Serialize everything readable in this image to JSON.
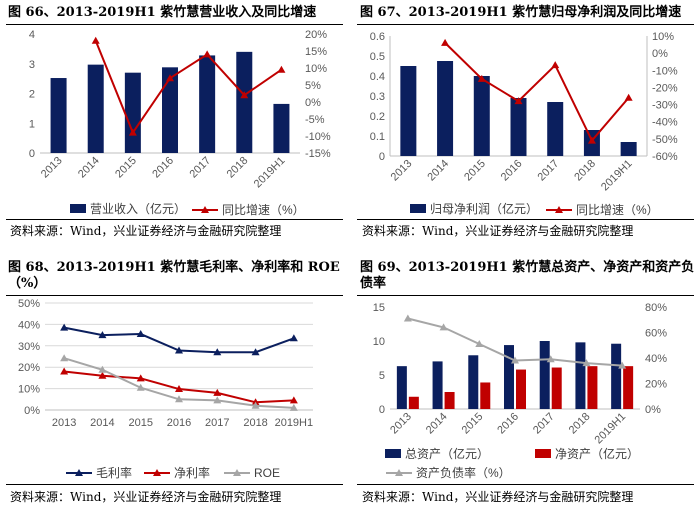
{
  "source_text": "资料来源：Wind，兴业证券经济与金融研究院整理",
  "chart_data": [
    {
      "id": "fig66",
      "type": "bar+line",
      "title": "图 66、2013-2019H1 紫竹慧营业收入及同比增速",
      "categories": [
        "2013",
        "2014",
        "2015",
        "2016",
        "2017",
        "2018",
        "2019H1"
      ],
      "series": [
        {
          "name": "营业收入（亿元）",
          "kind": "bar",
          "axis": "left",
          "color": "#0b1f5e",
          "values": [
            2.52,
            2.97,
            2.7,
            2.88,
            3.28,
            3.4,
            1.65
          ]
        },
        {
          "name": "同比增速（%）",
          "kind": "line",
          "axis": "right",
          "color": "#c00000",
          "marker": "triangle",
          "values": [
            null,
            18.0,
            -9.0,
            7.0,
            14.0,
            2.0,
            9.5
          ]
        }
      ],
      "left_axis": {
        "ylim": [
          0,
          4
        ],
        "ticks": [
          "0",
          "1",
          "2",
          "3",
          "4"
        ]
      },
      "right_axis": {
        "ylim": [
          -15,
          20
        ],
        "ticks": [
          "-15%",
          "-10%",
          "-5%",
          "0%",
          "5%",
          "10%",
          "15%",
          "20%"
        ]
      }
    },
    {
      "id": "fig67",
      "type": "bar+line",
      "title": "图 67、2013-2019H1 紫竹慧归母净利润及同比增速",
      "categories": [
        "2013",
        "2014",
        "2015",
        "2016",
        "2017",
        "2018",
        "2019H1"
      ],
      "series": [
        {
          "name": "归母净利润（亿元）",
          "kind": "bar",
          "axis": "left",
          "color": "#0b1f5e",
          "values": [
            0.45,
            0.475,
            0.4,
            0.29,
            0.27,
            0.13,
            0.07
          ]
        },
        {
          "name": "同比增速（%）",
          "kind": "line",
          "axis": "right",
          "color": "#c00000",
          "marker": "triangle",
          "values": [
            null,
            6.0,
            -15.0,
            -28.0,
            -7.0,
            -51.0,
            -26.0
          ]
        }
      ],
      "left_axis": {
        "ylim": [
          0,
          0.6
        ],
        "ticks": [
          "0",
          "0.1",
          "0.2",
          "0.3",
          "0.4",
          "0.5",
          "0.6"
        ]
      },
      "right_axis": {
        "ylim": [
          -60,
          10
        ],
        "ticks": [
          "-60%",
          "-50%",
          "-40%",
          "-30%",
          "-20%",
          "-10%",
          "0%",
          "10%"
        ]
      }
    },
    {
      "id": "fig68",
      "type": "line",
      "title": "图 68、2013-2019H1 紫竹慧毛利率、净利率和 ROE（%）",
      "categories": [
        "2013",
        "2014",
        "2015",
        "2016",
        "2017",
        "2018",
        "2019H1"
      ],
      "series": [
        {
          "name": "毛利率",
          "color": "#0b1f5e",
          "marker": "triangle",
          "values": [
            38.5,
            35.0,
            35.5,
            27.8,
            27.0,
            27.0,
            33.5
          ]
        },
        {
          "name": "净利率",
          "color": "#c00000",
          "marker": "triangle",
          "values": [
            18.0,
            16.0,
            14.8,
            9.8,
            8.0,
            3.6,
            4.5
          ]
        },
        {
          "name": "ROE",
          "color": "#a6a6a6",
          "marker": "triangle",
          "values": [
            24.2,
            18.8,
            10.4,
            5.0,
            4.5,
            2.0,
            1.0
          ]
        }
      ],
      "left_axis": {
        "ylim": [
          0,
          50
        ],
        "ticks": [
          "0%",
          "10%",
          "20%",
          "30%",
          "40%",
          "50%"
        ]
      }
    },
    {
      "id": "fig69",
      "type": "bar+line",
      "title": "图 69、2013-2019H1 紫竹慧总资产、净资产和资产负债率",
      "categories": [
        "2013",
        "2014",
        "2015",
        "2016",
        "2017",
        "2018",
        "2019H1"
      ],
      "series": [
        {
          "name": "总资产（亿元）",
          "kind": "bar",
          "axis": "left",
          "color": "#0b1f5e",
          "values": [
            6.3,
            7.0,
            7.9,
            9.4,
            10.0,
            9.8,
            9.6
          ]
        },
        {
          "name": "净资产（亿元）",
          "kind": "bar",
          "axis": "left",
          "color": "#c00000",
          "values": [
            1.8,
            2.5,
            3.9,
            5.8,
            6.1,
            6.3,
            6.3
          ]
        },
        {
          "name": "资产负债率（%）",
          "kind": "line",
          "axis": "right",
          "color": "#a6a6a6",
          "marker": "triangle",
          "values": [
            71,
            64,
            51,
            38,
            39,
            36,
            34
          ]
        }
      ],
      "left_axis": {
        "ylim": [
          0,
          15
        ],
        "ticks": [
          "0",
          "5",
          "10",
          "15"
        ]
      },
      "right_axis": {
        "ylim": [
          0,
          80
        ],
        "ticks": [
          "0%",
          "20%",
          "40%",
          "60%",
          "80%"
        ]
      }
    }
  ]
}
